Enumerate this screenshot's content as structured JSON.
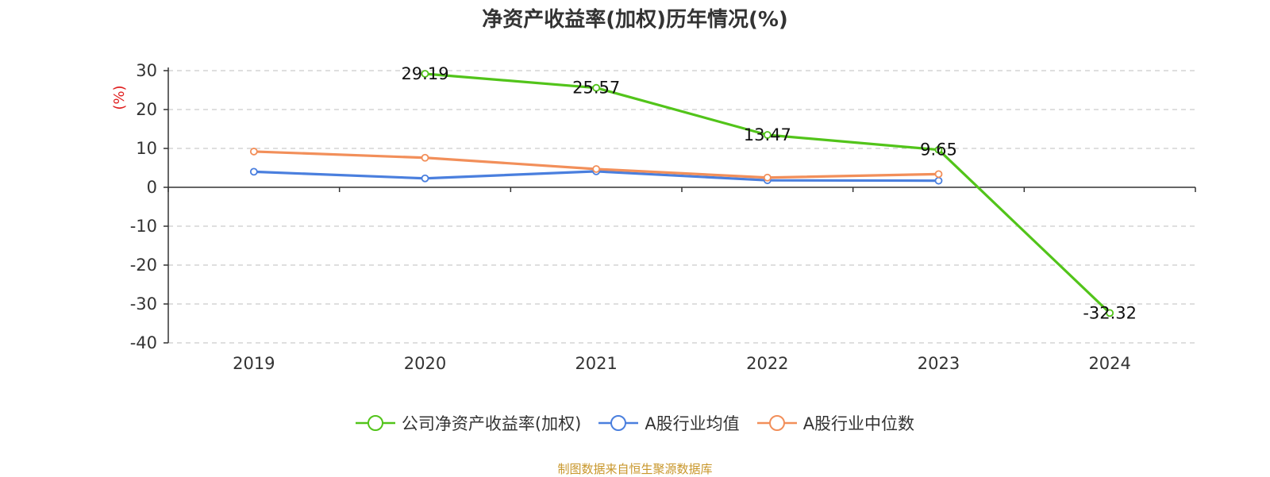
{
  "chart_data": {
    "type": "line",
    "title": "净资产收益率(加权)历年情况(%)",
    "ylabel": "(%)",
    "xlabel": "",
    "categories": [
      "2019",
      "2020",
      "2021",
      "2022",
      "2023",
      "2024"
    ],
    "ylim": [
      -40,
      30
    ],
    "yticks": [
      30,
      20,
      10,
      0,
      -10,
      -20,
      -30,
      -40
    ],
    "grid": true,
    "legend_position": "bottom-center",
    "series": [
      {
        "name": "公司净资产收益率(加权)",
        "color": "#52c41a",
        "values": [
          null,
          29.19,
          25.57,
          13.47,
          9.65,
          -32.32
        ],
        "labels": [
          "",
          "29.19",
          "25.57",
          "13.47",
          "9.65",
          "-32.32"
        ]
      },
      {
        "name": "A股行业均值",
        "color": "#4a7fde",
        "values": [
          4.0,
          2.3,
          4.1,
          1.8,
          1.7,
          null
        ]
      },
      {
        "name": "A股行业中位数",
        "color": "#f28f5a",
        "values": [
          9.2,
          7.6,
          4.7,
          2.5,
          3.4,
          null
        ]
      }
    ]
  },
  "footer": {
    "source": "制图数据来自恒生聚源数据库"
  }
}
